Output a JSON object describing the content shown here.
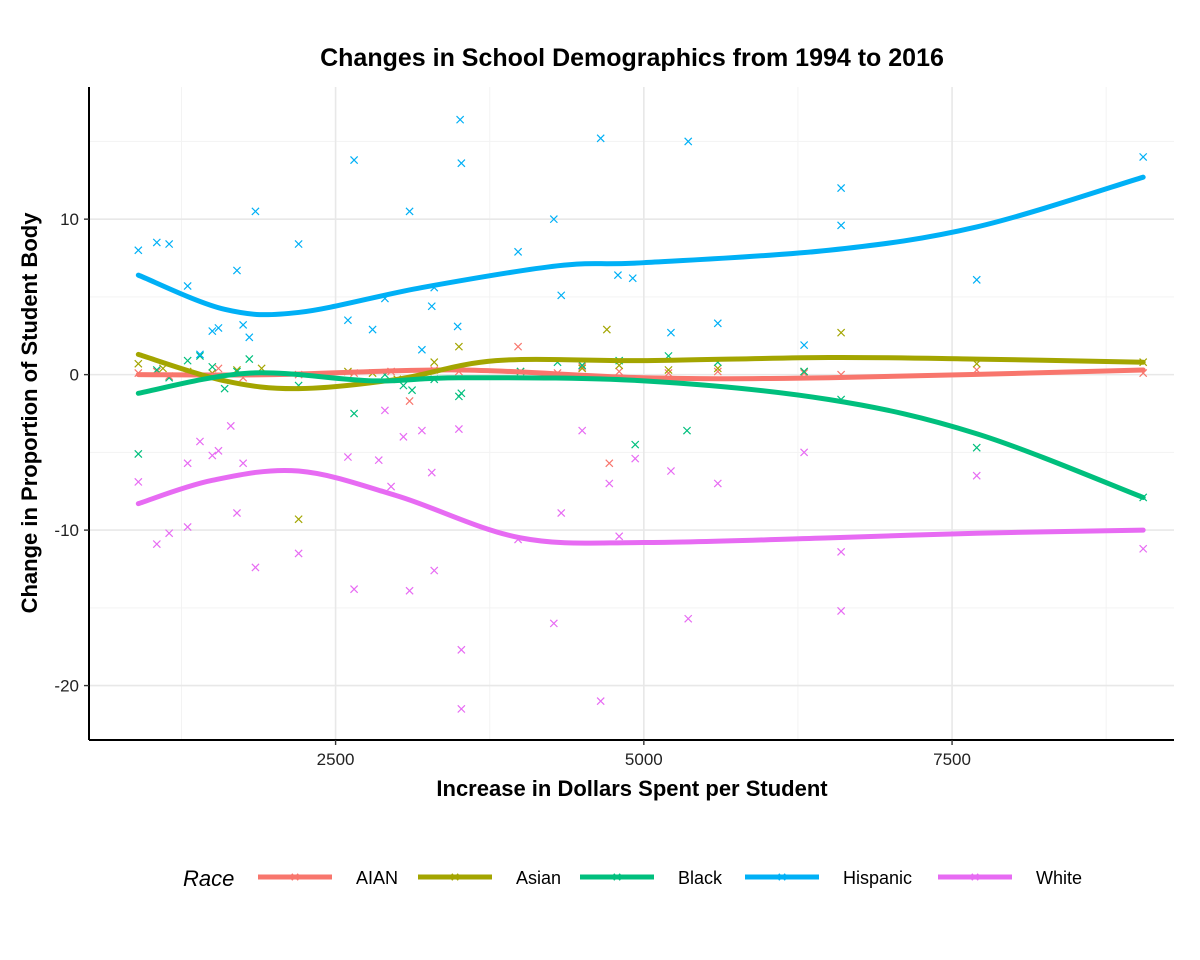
{
  "chart_data": {
    "type": "scatter",
    "title": "Changes in School Demographics from 1994 to 2016",
    "xlabel": "Increase in Dollars Spent per Student",
    "ylabel": "Change in Proportion of Student Body",
    "xlim": [
      500,
      9300
    ],
    "ylim": [
      -23.5,
      18.5
    ],
    "x_ticks": [
      2500,
      5000,
      7500
    ],
    "y_ticks": [
      -20,
      -10,
      0,
      10
    ],
    "grid": true,
    "legend": {
      "title": "Race",
      "position": "bottom"
    },
    "series": [
      {
        "name": "AIAN",
        "color": "#F8766D",
        "points": [
          [
            900,
            0.1
          ],
          [
            1050,
            0.2
          ],
          [
            1150,
            -0.1
          ],
          [
            1300,
            0.1
          ],
          [
            1550,
            0.4
          ],
          [
            1750,
            -0.2
          ],
          [
            2200,
            0.0
          ],
          [
            2650,
            0.1
          ],
          [
            2950,
            0.2
          ],
          [
            3100,
            -1.7
          ],
          [
            3300,
            0.3
          ],
          [
            3500,
            0.2
          ],
          [
            3980,
            1.8
          ],
          [
            4300,
            0.1
          ],
          [
            4500,
            0.5
          ],
          [
            4720,
            -5.7
          ],
          [
            4800,
            0.2
          ],
          [
            5200,
            0.1
          ],
          [
            5600,
            0.2
          ],
          [
            6300,
            0.1
          ],
          [
            6600,
            0.0
          ],
          [
            7700,
            0.3
          ],
          [
            9050,
            0.1
          ]
        ],
        "trend": [
          [
            900,
            0.0
          ],
          [
            2000,
            0.0
          ],
          [
            3500,
            0.3
          ],
          [
            5000,
            -0.2
          ],
          [
            6500,
            -0.2
          ],
          [
            9050,
            0.3
          ]
        ]
      },
      {
        "name": "Asian",
        "color": "#A3A500",
        "points": [
          [
            900,
            0.7
          ],
          [
            1100,
            0.4
          ],
          [
            1300,
            0.2
          ],
          [
            1500,
            0.1
          ],
          [
            1700,
            0.3
          ],
          [
            1900,
            0.4
          ],
          [
            2200,
            -9.3
          ],
          [
            2600,
            0.2
          ],
          [
            2800,
            0.1
          ],
          [
            3000,
            -0.3
          ],
          [
            3300,
            0.8
          ],
          [
            3500,
            1.8
          ],
          [
            4000,
            0.2
          ],
          [
            4500,
            0.4
          ],
          [
            4700,
            2.9
          ],
          [
            4800,
            0.6
          ],
          [
            5200,
            0.3
          ],
          [
            5600,
            0.4
          ],
          [
            6300,
            0.2
          ],
          [
            6600,
            2.7
          ],
          [
            7700,
            0.7
          ],
          [
            9050,
            0.8
          ]
        ],
        "trend": [
          [
            900,
            1.3
          ],
          [
            1600,
            -0.4
          ],
          [
            2200,
            -0.9
          ],
          [
            3000,
            -0.3
          ],
          [
            3800,
            0.9
          ],
          [
            5000,
            0.9
          ],
          [
            6500,
            1.1
          ],
          [
            7700,
            1.0
          ],
          [
            9050,
            0.8
          ]
        ]
      },
      {
        "name": "Black",
        "color": "#00BF7D",
        "points": [
          [
            900,
            -5.1
          ],
          [
            1050,
            0.3
          ],
          [
            1150,
            -0.2
          ],
          [
            1300,
            0.9
          ],
          [
            1400,
            1.2
          ],
          [
            1500,
            0.5
          ],
          [
            1600,
            -0.9
          ],
          [
            1700,
            0.2
          ],
          [
            1800,
            1.0
          ],
          [
            2200,
            -0.7
          ],
          [
            2650,
            -2.5
          ],
          [
            2900,
            0.0
          ],
          [
            3050,
            -0.7
          ],
          [
            3120,
            -1.0
          ],
          [
            3300,
            -0.3
          ],
          [
            3500,
            -1.4
          ],
          [
            3520,
            -1.2
          ],
          [
            4000,
            0.2
          ],
          [
            4300,
            0.8
          ],
          [
            4500,
            0.6
          ],
          [
            4800,
            0.9
          ],
          [
            4930,
            -4.5
          ],
          [
            5200,
            1.2
          ],
          [
            5350,
            -3.6
          ],
          [
            5600,
            0.8
          ],
          [
            6300,
            0.2
          ],
          [
            6600,
            -1.6
          ],
          [
            7700,
            -4.7
          ],
          [
            9050,
            -7.9
          ]
        ],
        "trend": [
          [
            900,
            -1.2
          ],
          [
            1800,
            0.1
          ],
          [
            2800,
            -0.4
          ],
          [
            3500,
            -0.2
          ],
          [
            5000,
            -0.4
          ],
          [
            6500,
            -1.6
          ],
          [
            7700,
            -3.8
          ],
          [
            9050,
            -7.9
          ]
        ]
      },
      {
        "name": "Hispanic",
        "color": "#00B0F6",
        "points": [
          [
            900,
            8.0
          ],
          [
            1050,
            8.5
          ],
          [
            1150,
            8.4
          ],
          [
            1300,
            5.7
          ],
          [
            1400,
            1.3
          ],
          [
            1500,
            2.8
          ],
          [
            1550,
            3.0
          ],
          [
            1700,
            6.7
          ],
          [
            1750,
            3.2
          ],
          [
            1800,
            2.4
          ],
          [
            1850,
            10.5
          ],
          [
            2200,
            8.4
          ],
          [
            2600,
            3.5
          ],
          [
            2650,
            13.8
          ],
          [
            2800,
            2.9
          ],
          [
            2900,
            4.9
          ],
          [
            3100,
            10.5
          ],
          [
            3200,
            1.6
          ],
          [
            3280,
            4.4
          ],
          [
            3300,
            5.6
          ],
          [
            3490,
            3.1
          ],
          [
            3510,
            16.4
          ],
          [
            3520,
            13.6
          ],
          [
            3980,
            7.9
          ],
          [
            4270,
            10.0
          ],
          [
            4330,
            5.1
          ],
          [
            4650,
            15.2
          ],
          [
            4790,
            6.4
          ],
          [
            4910,
            6.2
          ],
          [
            5220,
            2.7
          ],
          [
            5360,
            15.0
          ],
          [
            5600,
            3.3
          ],
          [
            6300,
            1.9
          ],
          [
            6600,
            12.0
          ],
          [
            6600,
            9.6
          ],
          [
            7700,
            6.1
          ],
          [
            9050,
            14.0
          ]
        ],
        "trend": [
          [
            900,
            6.4
          ],
          [
            1600,
            4.2
          ],
          [
            2200,
            4.0
          ],
          [
            3200,
            5.6
          ],
          [
            4300,
            7.0
          ],
          [
            5000,
            7.2
          ],
          [
            6500,
            8.0
          ],
          [
            7700,
            9.5
          ],
          [
            9050,
            12.7
          ]
        ]
      },
      {
        "name": "White",
        "color": "#E76BF3",
        "points": [
          [
            900,
            -6.9
          ],
          [
            1050,
            -10.9
          ],
          [
            1150,
            -10.2
          ],
          [
            1300,
            -5.7
          ],
          [
            1300,
            -9.8
          ],
          [
            1400,
            -4.3
          ],
          [
            1500,
            -5.2
          ],
          [
            1550,
            -4.9
          ],
          [
            1650,
            -3.3
          ],
          [
            1700,
            -8.9
          ],
          [
            1750,
            -5.7
          ],
          [
            1850,
            -12.4
          ],
          [
            2200,
            -11.5
          ],
          [
            2600,
            -5.3
          ],
          [
            2650,
            -13.8
          ],
          [
            2850,
            -5.5
          ],
          [
            2900,
            -2.3
          ],
          [
            2950,
            -7.2
          ],
          [
            3050,
            -4.0
          ],
          [
            3100,
            -13.9
          ],
          [
            3200,
            -3.6
          ],
          [
            3280,
            -6.3
          ],
          [
            3300,
            -12.6
          ],
          [
            3500,
            -3.5
          ],
          [
            3520,
            -17.7
          ],
          [
            3520,
            -21.5
          ],
          [
            3980,
            -10.6
          ],
          [
            4270,
            -16.0
          ],
          [
            4330,
            -8.9
          ],
          [
            4500,
            -3.6
          ],
          [
            4650,
            -21.0
          ],
          [
            4720,
            -7.0
          ],
          [
            4800,
            -10.4
          ],
          [
            4930,
            -5.4
          ],
          [
            5220,
            -6.2
          ],
          [
            5360,
            -15.7
          ],
          [
            5600,
            -7.0
          ],
          [
            6300,
            -5.0
          ],
          [
            6600,
            -11.4
          ],
          [
            6600,
            -15.2
          ],
          [
            7700,
            -6.5
          ],
          [
            9050,
            -11.2
          ]
        ],
        "trend": [
          [
            900,
            -8.3
          ],
          [
            1500,
            -6.8
          ],
          [
            2200,
            -6.2
          ],
          [
            3000,
            -7.8
          ],
          [
            4000,
            -10.5
          ],
          [
            5000,
            -10.8
          ],
          [
            6500,
            -10.5
          ],
          [
            7700,
            -10.2
          ],
          [
            9050,
            -10.0
          ]
        ]
      }
    ]
  }
}
